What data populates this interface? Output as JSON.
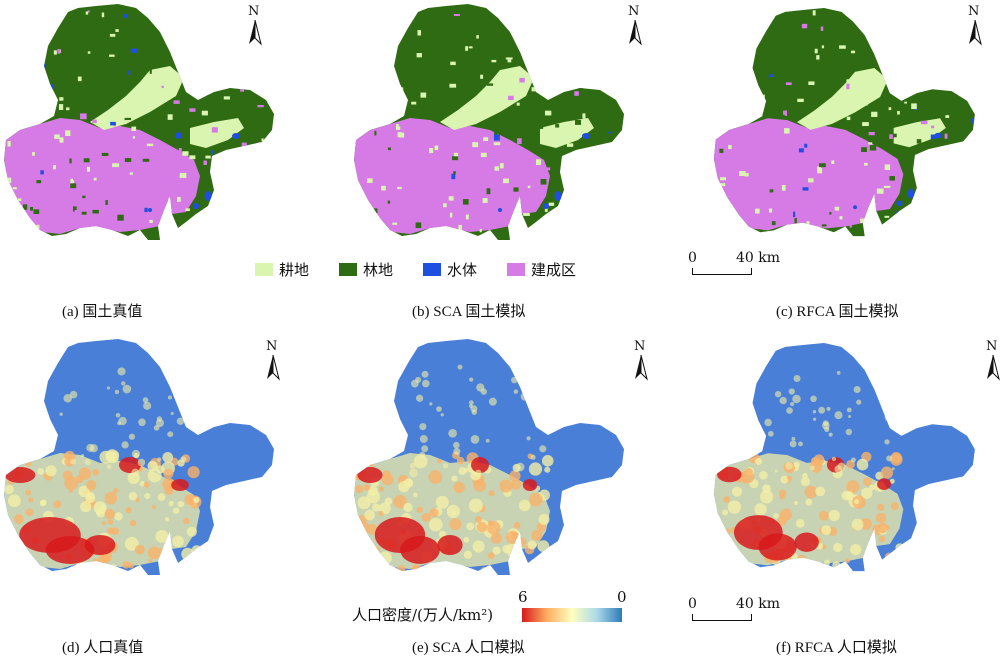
{
  "panels": [
    {
      "caption": "(a)  国土真值",
      "kind": "land"
    },
    {
      "caption": "(b)  SCA 国土模拟",
      "kind": "land"
    },
    {
      "caption": "(c)  RFCA 国土模拟",
      "kind": "land"
    },
    {
      "caption": "(d)  人口真值",
      "kind": "pop"
    },
    {
      "caption": "(e)  SCA 人口模拟",
      "kind": "pop"
    },
    {
      "caption": "(f)  RFCA 人口模拟",
      "kind": "pop"
    }
  ],
  "north_label": "N",
  "land_legend": [
    {
      "label": "耕地",
      "color": "#d9f5b0"
    },
    {
      "label": "林地",
      "color": "#2f6b12"
    },
    {
      "label": "水体",
      "color": "#1f4fe0"
    },
    {
      "label": "建成区",
      "color": "#d67ae6"
    }
  ],
  "scale_bar": {
    "start": "0",
    "end": "40 km"
  },
  "pop_legend": {
    "title": "人口密度/(万人/km²)",
    "max_label": "6",
    "min_label": "0",
    "colors": [
      "#d7191c",
      "#fdae61",
      "#ffffbf",
      "#abd9e9",
      "#2c7bb6"
    ]
  },
  "map_colors": {
    "forest": "#2f6b12",
    "cropland": "#d9f5b0",
    "water": "#1f4fe0",
    "builtup": "#d67ae6",
    "pop_low": "#4a7fd8",
    "pop_mid": "#f2efa6",
    "pop_mid2": "#f9b36a",
    "pop_high": "#d7191c"
  }
}
